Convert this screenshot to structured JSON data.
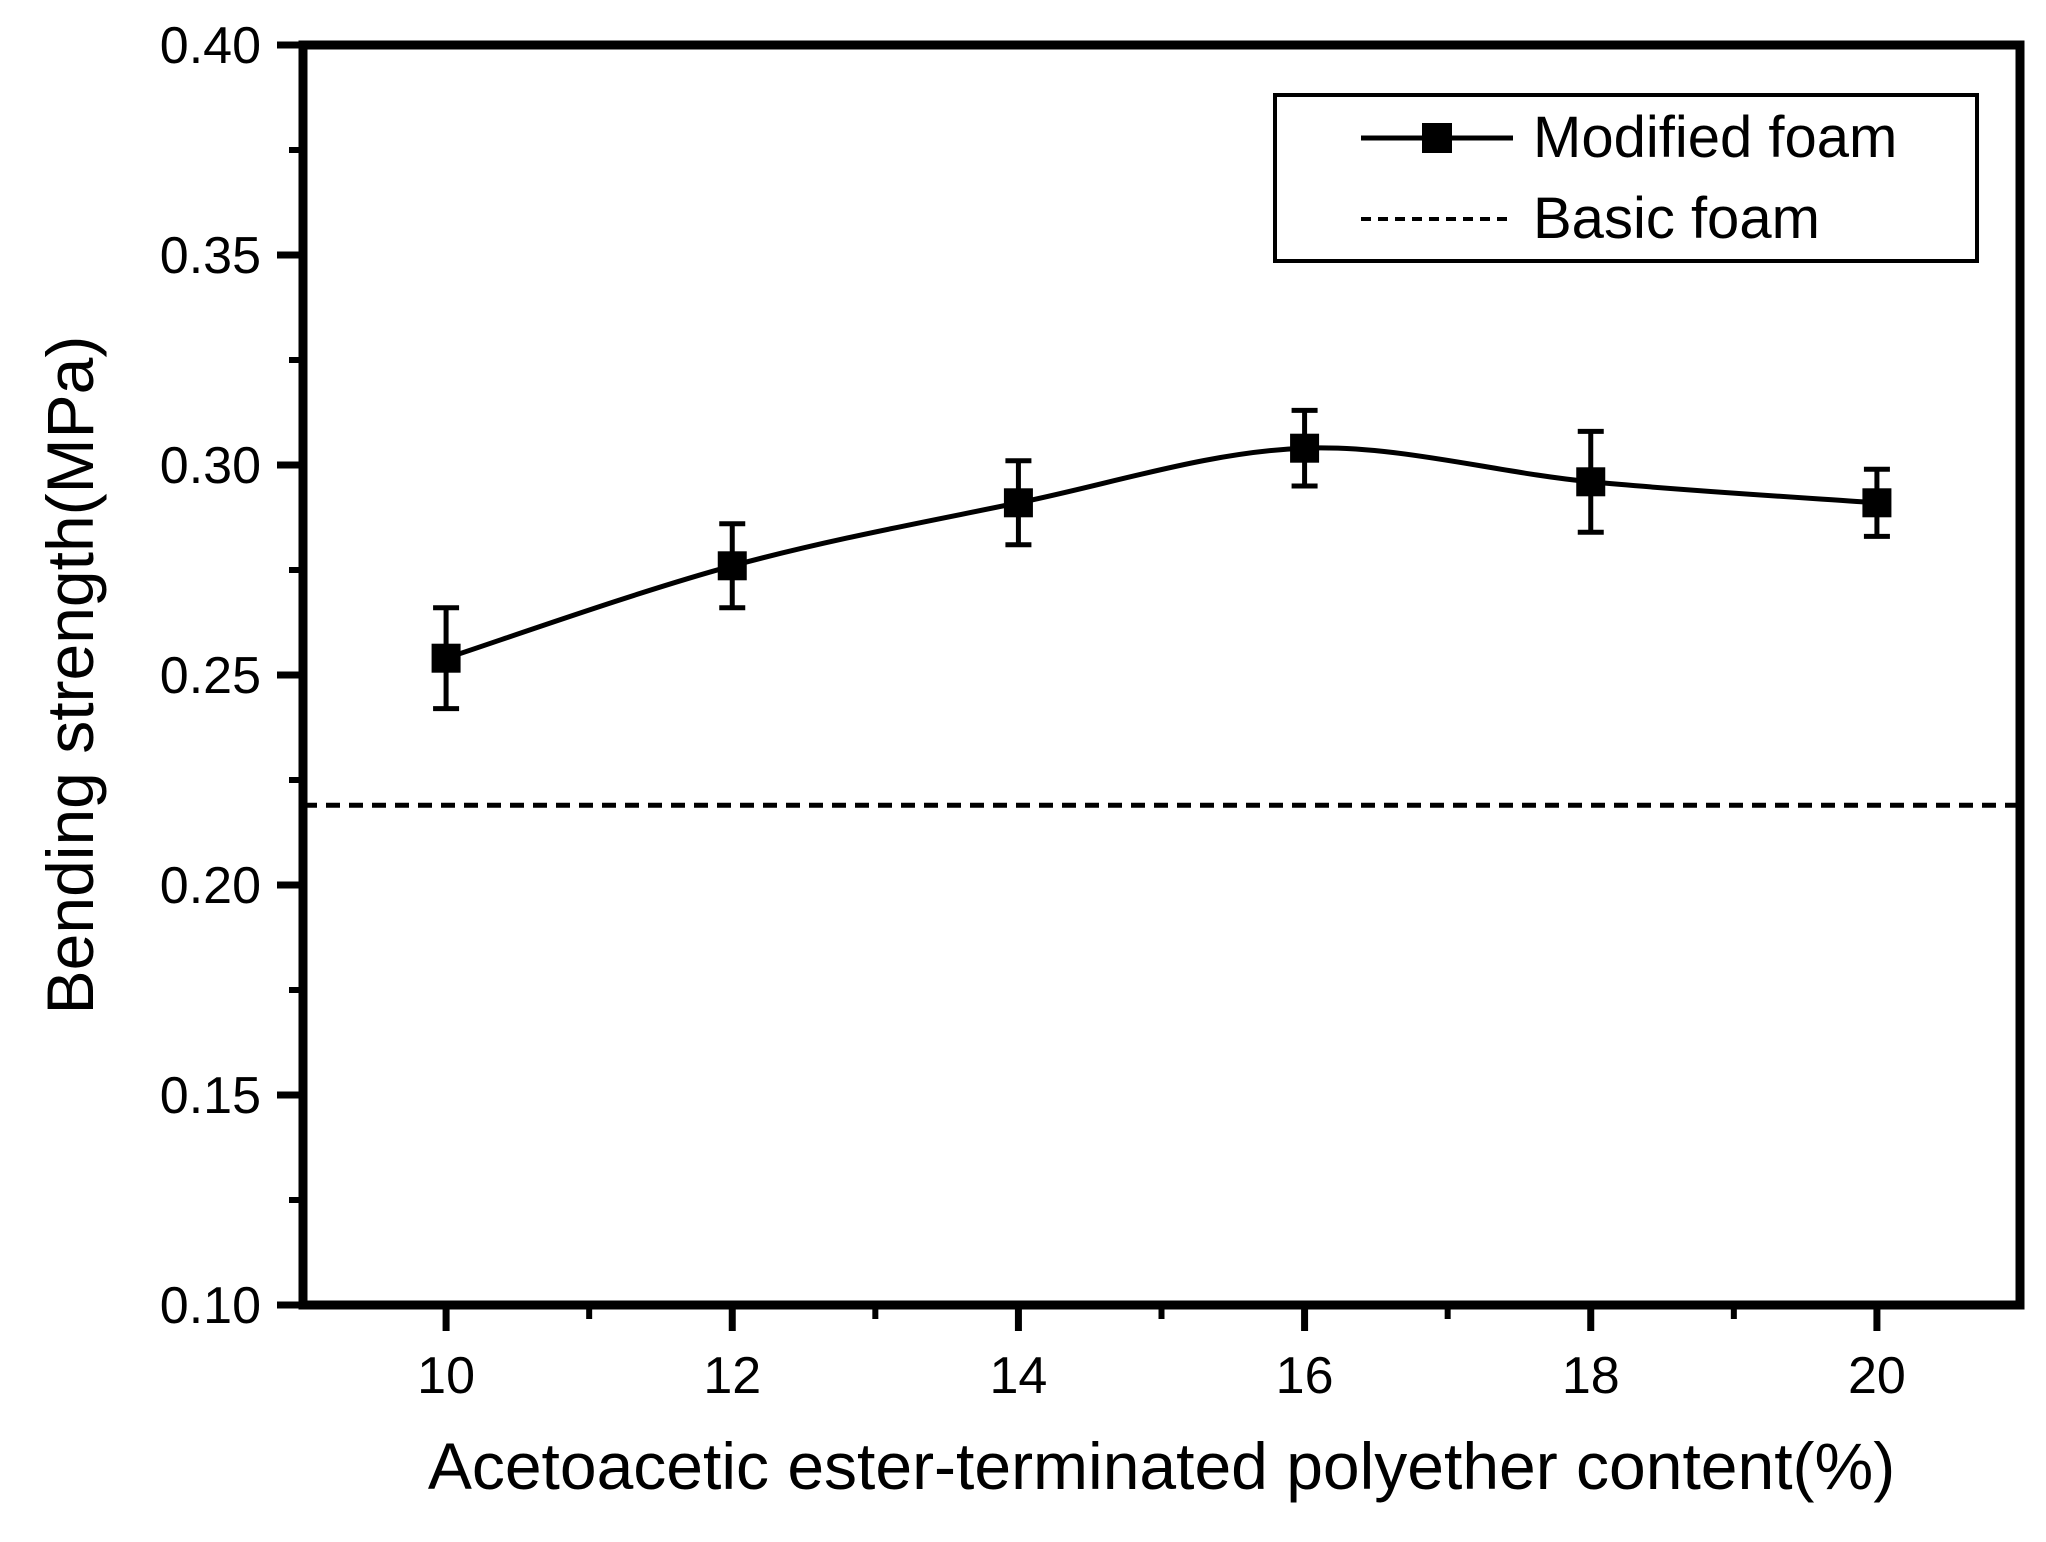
{
  "figure": {
    "background_color": "#ffffff",
    "ink_color": "#000000"
  },
  "chart_data": {
    "type": "line",
    "title": "",
    "xlabel": "Acetoacetic ester-terminated polyether content(%)",
    "ylabel": "Bending strength(MPa)",
    "xlim": [
      9,
      21
    ],
    "ylim": [
      0.1,
      0.4
    ],
    "x_major_ticks": [
      10,
      12,
      14,
      16,
      18,
      20
    ],
    "x_minor_ticks": [
      11,
      13,
      15,
      17,
      19
    ],
    "y_major_ticks": [
      0.1,
      0.15,
      0.2,
      0.25,
      0.3,
      0.35,
      0.4
    ],
    "y_minor_ticks": [
      0.125,
      0.175,
      0.225,
      0.275,
      0.325,
      0.375
    ],
    "y_tick_decimals": 2,
    "grid": false,
    "legend_position": "top-right",
    "series": [
      {
        "name": "Modified foam",
        "style": "solid-line-square-markers",
        "x": [
          10,
          12,
          14,
          16,
          18,
          20
        ],
        "y": [
          0.254,
          0.276,
          0.291,
          0.304,
          0.296,
          0.291
        ],
        "y_error": [
          0.012,
          0.01,
          0.01,
          0.009,
          0.012,
          0.008
        ]
      },
      {
        "name": "Basic foam",
        "style": "dashed-horizontal-line",
        "y_constant": 0.219
      }
    ]
  }
}
